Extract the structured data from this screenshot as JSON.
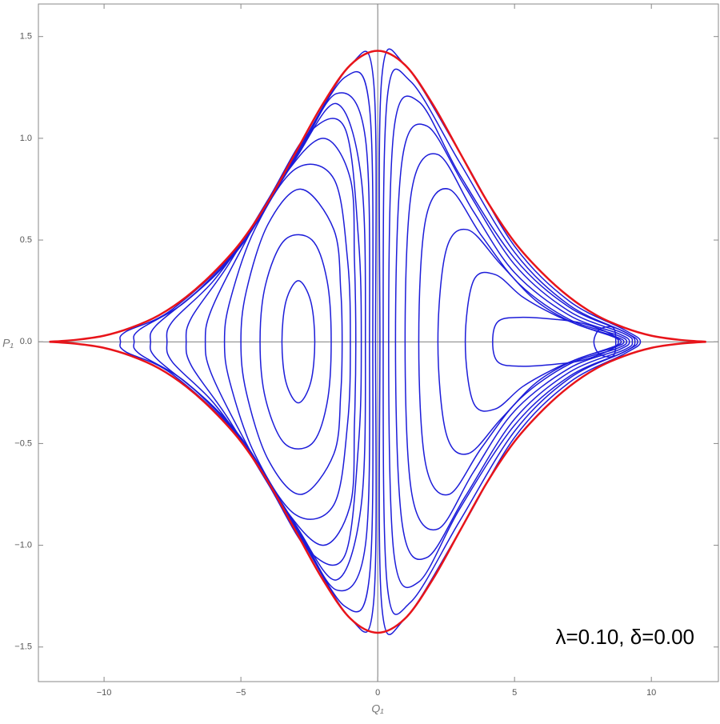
{
  "chart_data": {
    "type": "contour",
    "xlabel": "Q₁",
    "ylabel": "P₁",
    "annotation": "λ=0.10, δ=0.00",
    "xlim": [
      -12.4,
      12.45
    ],
    "ylim": [
      -1.67,
      1.66
    ],
    "xticks": [
      {
        "value": -10,
        "label": "−10"
      },
      {
        "value": -5,
        "label": "−5"
      },
      0,
      5,
      10
    ],
    "yticks": [
      {
        "value": -1.5,
        "label": "−1.5"
      },
      {
        "value": -1.0,
        "label": "−1.0"
      },
      {
        "value": -0.5,
        "label": "−0.5"
      },
      {
        "value": 0,
        "label": "0.0"
      },
      {
        "value": 0.5,
        "label": "0.5"
      },
      {
        "value": 1.0,
        "label": "1.0"
      },
      {
        "value": 1.5,
        "label": "1.5"
      }
    ],
    "curves": [
      {
        "color": "#1c1cd9",
        "closed": true,
        "x": [
          -3.5,
          -3.35,
          -2.9,
          -2.45,
          -2.3,
          -2.45,
          -2.9,
          -3.35
        ],
        "y": [
          0,
          0.2,
          0.3,
          0.2,
          0,
          -0.2,
          -0.3,
          -0.2
        ]
      },
      {
        "color": "#1c1cd9",
        "closed": true,
        "x": [
          -4.3,
          -4.1,
          -3.4,
          -2.4,
          -1.85,
          -1.7,
          -1.85,
          -2.4,
          -3.4,
          -4.1
        ],
        "y": [
          0,
          0.28,
          0.5,
          0.5,
          0.3,
          0,
          -0.3,
          -0.5,
          -0.5,
          -0.28
        ]
      },
      {
        "color": "#1c1cd9",
        "closed": true,
        "x": [
          -5,
          -4.8,
          -4,
          -2.8,
          -1.6,
          -1.35,
          -1.3,
          -1.35,
          -1.6,
          -2.8,
          -4,
          -4.8
        ],
        "y": [
          0,
          0.25,
          0.58,
          0.75,
          0.55,
          0.25,
          0,
          -0.25,
          -0.55,
          -0.75,
          -0.58,
          -0.25
        ]
      },
      {
        "color": "#1c1cd9",
        "closed": true,
        "x": [
          -5.6,
          -5.4,
          -4.5,
          -3,
          -1.6,
          -1.1,
          -1.0,
          -1.1,
          -1.6,
          -3,
          -4.5,
          -5.4
        ],
        "y": [
          0,
          0.2,
          0.55,
          0.85,
          0.8,
          0.4,
          0,
          -0.4,
          -0.8,
          -0.85,
          -0.55,
          -0.2
        ]
      },
      {
        "color": "#1c1cd9",
        "closed": true,
        "x": [
          -6.3,
          -6.1,
          -5,
          -3.5,
          -2,
          -1,
          -0.85,
          -0.8,
          -0.85,
          -1,
          -2,
          -3.5,
          -5,
          -6.1
        ],
        "y": [
          0,
          0.15,
          0.45,
          0.8,
          1.0,
          0.8,
          0.4,
          0,
          -0.4,
          -0.8,
          -1.0,
          -0.8,
          -0.45,
          -0.15
        ]
      },
      {
        "color": "#1c1cd9",
        "closed": true,
        "x": [
          -7,
          -6.8,
          -5.5,
          -4,
          -2.5,
          -1.2,
          -0.7,
          -0.6,
          -0.7,
          -1.2,
          -2.5,
          -4,
          -5.5,
          -6.8
        ],
        "y": [
          0,
          0.12,
          0.37,
          0.7,
          1.03,
          1.05,
          0.5,
          0,
          -0.5,
          -1.05,
          -1.03,
          -0.7,
          -0.37,
          -0.12
        ]
      },
      {
        "color": "#1c1cd9",
        "closed": true,
        "x": [
          -7.7,
          -7.5,
          -6,
          -4.5,
          -3,
          -1.5,
          -0.6,
          -0.45,
          -0.6,
          -1.5,
          -3,
          -4.5,
          -6,
          -7.5
        ],
        "y": [
          0,
          0.1,
          0.3,
          0.58,
          0.9,
          1.17,
          0.8,
          0,
          -0.8,
          -1.17,
          -0.9,
          -0.58,
          -0.3,
          -0.1
        ]
      },
      {
        "color": "#1c1cd9",
        "closed": true,
        "x": [
          -8.3,
          -8.1,
          -6.5,
          -5,
          -3,
          -1.5,
          -0.45,
          -0.3,
          -0.45,
          -1.5,
          -3,
          -5,
          -6.5,
          -8.1
        ],
        "y": [
          0,
          0.08,
          0.26,
          0.48,
          0.9,
          1.22,
          1.0,
          0,
          -1.0,
          -1.22,
          -0.9,
          -0.48,
          -0.26,
          -0.08
        ]
      },
      {
        "color": "#1c1cd9",
        "closed": true,
        "x": [
          -8.9,
          -8.7,
          -7,
          -5,
          -3,
          -1.2,
          -0.3,
          -0.18,
          -0.3,
          -1.2,
          -3,
          -5,
          -7,
          -8.7
        ],
        "y": [
          0,
          0.06,
          0.2,
          0.47,
          0.91,
          1.3,
          1.15,
          0,
          -1.15,
          -1.3,
          -0.91,
          -0.47,
          -0.2,
          -0.06
        ]
      },
      {
        "color": "#1c1cd9",
        "closed": true,
        "x": [
          -9.4,
          -9.2,
          -7.5,
          -5,
          -3,
          -1,
          -0.15,
          -0.08,
          -0.15,
          -1,
          -3,
          -5,
          -7.5,
          -9.2
        ],
        "y": [
          0,
          0.05,
          0.16,
          0.48,
          0.92,
          1.36,
          1.28,
          0,
          -1.28,
          -1.36,
          -0.92,
          -0.48,
          -0.16,
          -0.05
        ]
      },
      {
        "color": "#1c1cd9",
        "closed": true,
        "x": [
          0.08,
          0.15,
          1,
          3,
          5,
          7,
          9,
          9.6,
          9,
          7,
          5,
          3,
          1,
          0.15
        ],
        "y": [
          0,
          1.3,
          1.36,
          0.93,
          0.47,
          0.2,
          0.06,
          0,
          -0.06,
          -0.2,
          -0.47,
          -0.93,
          -1.36,
          -1.3
        ]
      },
      {
        "color": "#1c1cd9",
        "closed": true,
        "x": [
          0.2,
          0.35,
          1.2,
          3,
          5,
          7,
          9,
          9.5,
          9,
          7,
          5,
          3,
          1.2,
          0.35
        ],
        "y": [
          0,
          1.2,
          1.28,
          0.88,
          0.44,
          0.18,
          0.05,
          0,
          -0.05,
          -0.18,
          -0.44,
          -0.88,
          -1.28,
          -1.2
        ]
      },
      {
        "color": "#1c1cd9",
        "closed": true,
        "x": [
          0.4,
          0.6,
          1.5,
          3,
          5,
          7,
          9,
          9.4,
          9,
          7,
          5,
          3,
          1.5,
          0.6
        ],
        "y": [
          0,
          1.05,
          1.18,
          0.82,
          0.41,
          0.17,
          0.05,
          0,
          -0.05,
          -0.17,
          -0.41,
          -0.82,
          -1.18,
          -1.05
        ]
      },
      {
        "color": "#1c1cd9",
        "closed": true,
        "x": [
          0.65,
          0.9,
          1.8,
          3.2,
          5,
          7,
          9,
          9.3,
          9,
          7,
          5,
          3.2,
          1.8,
          0.9
        ],
        "y": [
          0,
          0.9,
          1.06,
          0.76,
          0.38,
          0.15,
          0.04,
          0,
          -0.04,
          -0.15,
          -0.38,
          -0.76,
          -1.06,
          -0.9
        ]
      },
      {
        "color": "#1c1cd9",
        "closed": true,
        "x": [
          1.0,
          1.25,
          2.2,
          3.5,
          5,
          7,
          8.8,
          9.2,
          8.8,
          7,
          5,
          3.5,
          2.2,
          1.25
        ],
        "y": [
          0,
          0.75,
          0.92,
          0.64,
          0.34,
          0.13,
          0.04,
          0,
          -0.04,
          -0.13,
          -0.34,
          -0.64,
          -0.92,
          -0.75
        ]
      },
      {
        "color": "#1c1cd9",
        "closed": true,
        "x": [
          1.5,
          1.75,
          2.6,
          3.8,
          5.2,
          7,
          8.7,
          9.1,
          8.7,
          7,
          5.2,
          3.8,
          2.6,
          1.75
        ],
        "y": [
          0,
          0.6,
          0.75,
          0.52,
          0.28,
          0.11,
          0.035,
          0,
          -0.035,
          -0.11,
          -0.28,
          -0.52,
          -0.75,
          -0.6
        ]
      },
      {
        "color": "#1c1cd9",
        "closed": true,
        "x": [
          2.2,
          2.5,
          3.3,
          4.5,
          5.8,
          7.2,
          8.6,
          9.0,
          8.6,
          7.2,
          5.8,
          4.5,
          3.3,
          2.5
        ],
        "y": [
          0,
          0.45,
          0.55,
          0.38,
          0.2,
          0.09,
          0.03,
          0,
          -0.03,
          -0.09,
          -0.2,
          -0.38,
          -0.55,
          -0.45
        ]
      },
      {
        "color": "#1c1cd9",
        "closed": true,
        "x": [
          3.2,
          3.5,
          4.3,
          5.3,
          6.5,
          7.6,
          8.6,
          8.9,
          8.6,
          7.6,
          6.5,
          5.3,
          4.3,
          3.5
        ],
        "y": [
          0,
          0.3,
          0.33,
          0.22,
          0.13,
          0.07,
          0.025,
          0,
          -0.025,
          -0.07,
          -0.13,
          -0.22,
          -0.33,
          -0.3
        ]
      },
      {
        "color": "#1c1cd9",
        "closed": true,
        "x": [
          4.2,
          4.4,
          5.2,
          6.5,
          7.5,
          8.5,
          8.8,
          8.5,
          7.5,
          6.5,
          5.2,
          4.4
        ],
        "y": [
          0,
          0.1,
          0.12,
          0.11,
          0.09,
          0.04,
          0,
          -0.04,
          -0.09,
          -0.11,
          -0.12,
          -0.1
        ]
      },
      {
        "color": "#1c1cd9",
        "closed": true,
        "x": [
          7.9,
          8.1,
          8.6,
          8.7,
          8.6,
          8.1
        ],
        "y": [
          0,
          0.06,
          0.07,
          0,
          -0.07,
          -0.06
        ]
      },
      {
        "color": "#e8141a",
        "closed": false,
        "x": [
          -12,
          -11,
          -10,
          -9,
          -8,
          -7,
          -6,
          -5,
          -4,
          -3,
          -2,
          -1,
          0,
          1,
          2,
          3,
          4,
          5,
          6,
          7,
          8,
          9,
          10,
          11,
          12
        ],
        "y": [
          0,
          0.01,
          0.03,
          0.07,
          0.13,
          0.22,
          0.34,
          0.49,
          0.69,
          0.93,
          1.17,
          1.36,
          1.43,
          1.36,
          1.17,
          0.93,
          0.69,
          0.49,
          0.34,
          0.22,
          0.13,
          0.07,
          0.03,
          0.01,
          0
        ]
      },
      {
        "color": "#e8141a",
        "closed": false,
        "x": [
          -12,
          -11,
          -10,
          -9,
          -8,
          -7,
          -6,
          -5,
          -4,
          -3,
          -2,
          -1,
          0,
          1,
          2,
          3,
          4,
          5,
          6,
          7,
          8,
          9,
          10,
          11,
          12
        ],
        "y": [
          0,
          -0.01,
          -0.03,
          -0.07,
          -0.13,
          -0.22,
          -0.34,
          -0.49,
          -0.69,
          -0.93,
          -1.17,
          -1.36,
          -1.43,
          -1.36,
          -1.17,
          -0.93,
          -0.69,
          -0.49,
          -0.34,
          -0.22,
          -0.13,
          -0.07,
          -0.03,
          -0.01,
          0
        ]
      }
    ]
  }
}
